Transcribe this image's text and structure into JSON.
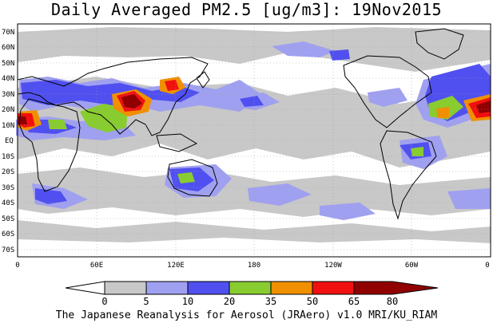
{
  "title": "Daily Averaged PM2.5 [ug/m3]: 19Nov2015",
  "footer": "The Japanese Reanalysis for Aerosol (JRAero) v1.0 MRI/KU_RIAM",
  "map": {
    "lat_labels": [
      "70N",
      "60N",
      "50N",
      "40N",
      "30N",
      "20N",
      "10N",
      "EQ",
      "10S",
      "20S",
      "30S",
      "40S",
      "50S",
      "60S",
      "70S"
    ],
    "lon_labels": [
      "0",
      "60E",
      "120E",
      "180",
      "120W",
      "60W",
      "0"
    ]
  },
  "colorbar": {
    "levels": [
      "0",
      "5",
      "10",
      "20",
      "35",
      "50",
      "65",
      "80"
    ],
    "colors": [
      "#ffffff",
      "#c8c8c8",
      "#a0a0f0",
      "#5050f0",
      "#88cc30",
      "#f09000",
      "#f01010",
      "#900000"
    ]
  },
  "colors": {
    "land_outline": "#000000",
    "grid": "#a0a0a0",
    "gray": "#c8c8c8",
    "lightblue": "#a0a0f0",
    "blue": "#5050f0",
    "green": "#88cc30",
    "orange": "#f09000",
    "red": "#f01010",
    "darkred": "#900000"
  }
}
